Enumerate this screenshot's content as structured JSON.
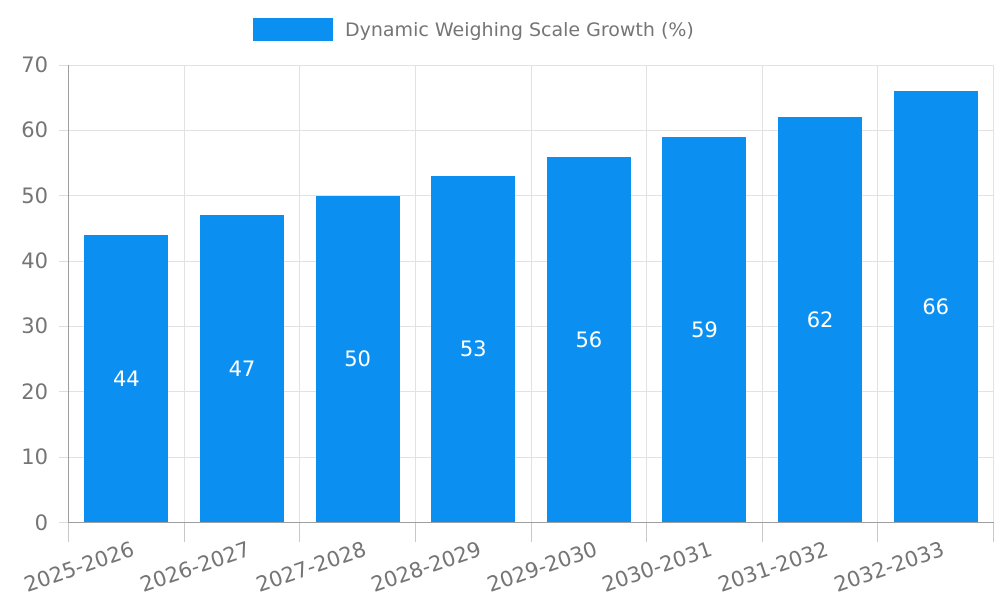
{
  "legend": {
    "label": "Dynamic Weighing Scale Growth (%)"
  },
  "colors": {
    "bar": "#0B90F2",
    "legend_text": "#757575",
    "axis_text": "#757575",
    "value_label": "#FFFFFF",
    "grid_line": "#E2E2E2",
    "axis_line": "#9E9E9E",
    "tick_bottom": "#C9C9C9",
    "tick_left": "#DDDDDD",
    "background": "#FFFFFF"
  },
  "chart_data": {
    "type": "bar",
    "title": "Dynamic Weighing Scale Growth (%)",
    "categories": [
      "2025-2026",
      "2026-2027",
      "2027-2028",
      "2028-2029",
      "2029-2030",
      "2030-2031",
      "2031-2032",
      "2032-2033"
    ],
    "values": [
      44,
      47,
      50,
      53,
      56,
      59,
      62,
      66
    ],
    "xlabel": "",
    "ylabel": "",
    "ylim": [
      0,
      70
    ],
    "yticks": [
      0,
      10,
      20,
      30,
      40,
      50,
      60,
      70
    ],
    "grid": true,
    "legend_position": "top-center",
    "value_labels": "inside-center",
    "x_tick_label_rotation_deg": -19
  }
}
